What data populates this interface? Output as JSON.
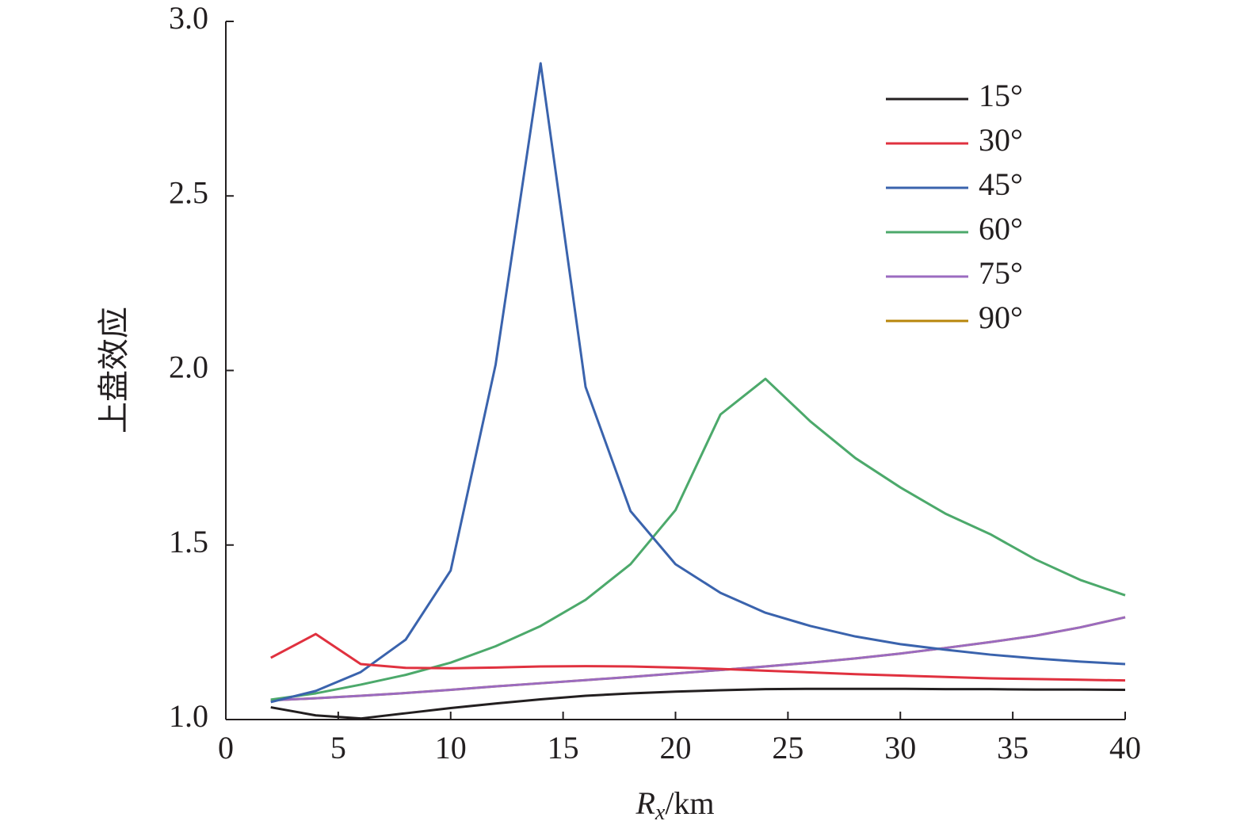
{
  "chart_data": {
    "type": "line",
    "ylabel": "上盘效应",
    "xlabel": {
      "main": "R",
      "sub": "x",
      "unit": "/km"
    },
    "x": [
      2,
      4,
      6,
      8,
      10,
      12,
      14,
      16,
      18,
      20,
      22,
      24,
      26,
      28,
      30,
      32,
      34,
      36,
      38,
      40
    ],
    "xlim": [
      0,
      40
    ],
    "xticks": [
      0,
      5,
      10,
      15,
      20,
      25,
      30,
      35,
      40
    ],
    "ylim": [
      1,
      3
    ],
    "yticks": [
      {
        "value": 1,
        "label": "1.0"
      },
      1.5,
      {
        "value": 2,
        "label": "2.0"
      },
      2.5,
      {
        "value": 3,
        "label": "3.0"
      }
    ],
    "legend": "upper right",
    "series": [
      {
        "name": "15°",
        "color": "#231f20",
        "values": [
          1.035,
          1.012,
          1.003,
          1.018,
          1.033,
          1.046,
          1.058,
          1.068,
          1.075,
          1.08,
          1.084,
          1.087,
          1.088,
          1.088,
          1.088,
          1.087,
          1.087,
          1.086,
          1.086,
          1.085
        ]
      },
      {
        "name": "30°",
        "color": "#e0313f",
        "values": [
          1.177,
          1.245,
          1.159,
          1.148,
          1.147,
          1.149,
          1.152,
          1.153,
          1.152,
          1.149,
          1.145,
          1.14,
          1.135,
          1.13,
          1.126,
          1.122,
          1.118,
          1.116,
          1.114,
          1.112
        ]
      },
      {
        "name": "45°",
        "color": "#3a63ad",
        "values": [
          1.05,
          1.082,
          1.136,
          1.229,
          1.427,
          2.017,
          2.88,
          1.953,
          1.597,
          1.445,
          1.363,
          1.306,
          1.268,
          1.238,
          1.216,
          1.2,
          1.186,
          1.175,
          1.166,
          1.159
        ]
      },
      {
        "name": "60°",
        "color": "#4ca96b",
        "values": [
          1.057,
          1.075,
          1.1,
          1.128,
          1.163,
          1.21,
          1.268,
          1.343,
          1.445,
          1.6,
          1.874,
          1.976,
          1.854,
          1.749,
          1.665,
          1.59,
          1.531,
          1.459,
          1.4,
          1.356
        ]
      },
      {
        "name": "75°",
        "color": "#9b6bc0",
        "values": [
          1.055,
          1.061,
          1.068,
          1.076,
          1.085,
          1.095,
          1.104,
          1.113,
          1.122,
          1.132,
          1.142,
          1.152,
          1.163,
          1.175,
          1.189,
          1.205,
          1.222,
          1.24,
          1.264,
          1.293
        ]
      },
      {
        "name": "90°",
        "color": "#b8860b",
        "values": [
          1.055,
          1.061,
          1.068,
          1.076,
          1.085,
          1.095,
          1.104,
          1.113,
          1.122,
          1.132,
          1.142,
          1.152,
          1.163,
          1.175,
          1.189,
          1.205,
          1.222,
          1.24,
          1.264,
          1.293
        ]
      }
    ]
  }
}
